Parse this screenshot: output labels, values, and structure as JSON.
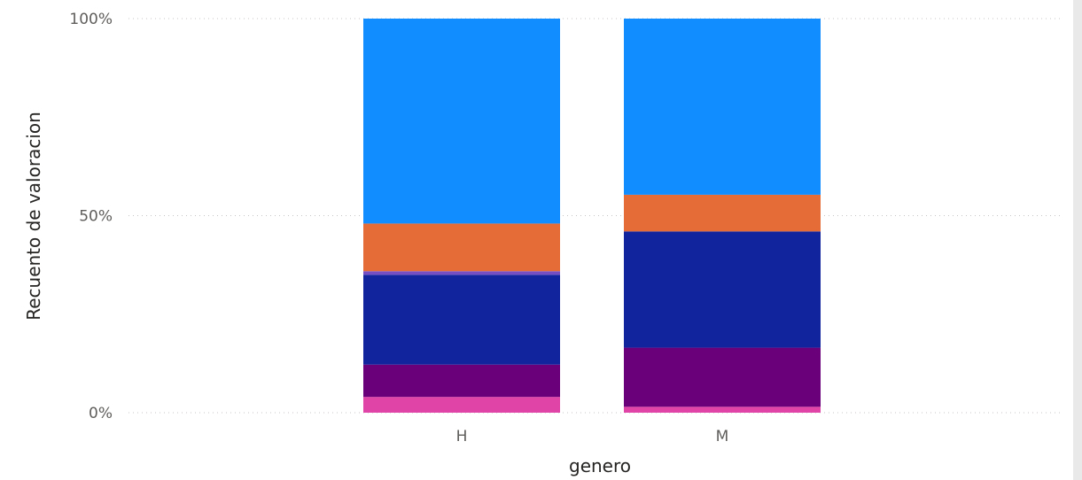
{
  "chart_data": {
    "type": "bar",
    "stacked": "100%",
    "categories": [
      "H",
      "M"
    ],
    "xlabel": "genero",
    "ylabel": "Recuento de valoracion",
    "ylim": [
      0,
      100
    ],
    "y_ticks": [
      "0%",
      "50%",
      "100%"
    ],
    "grid": "horizontal dotted",
    "series": [
      {
        "color": "#E044A7",
        "values": [
          4.0,
          1.5
        ]
      },
      {
        "color": "#6B007B",
        "values": [
          8.2,
          15.0
        ]
      },
      {
        "color": "#12239E",
        "values": [
          22.8,
          29.5
        ]
      },
      {
        "color": "#744EC2",
        "values": [
          0.9,
          0.0
        ]
      },
      {
        "color": "#E66C37",
        "values": [
          12.1,
          9.3
        ]
      },
      {
        "color": "#118DFF",
        "values": [
          52.0,
          44.7
        ]
      }
    ]
  }
}
